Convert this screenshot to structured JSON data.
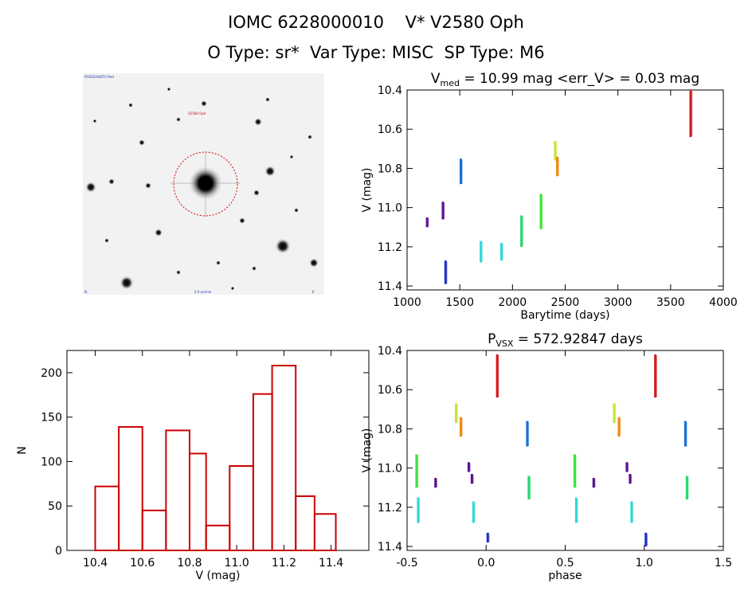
{
  "header": {
    "title_line1": "IOMC 6228000010    V* V2580 Oph",
    "title_line2": "O Type: sr*  Var Type: MISC  SP Type: M6"
  },
  "finder_chart": {
    "labels": {
      "top_left": "POSS2/UKSTU Red",
      "target": "V2580 Oph",
      "bottom_center": "2.0 arcmin",
      "bottom_left": "N",
      "bottom_right": "E"
    }
  },
  "chart_data": [
    {
      "type": "scatter",
      "title_prefix": "V",
      "title_subscript": "med",
      "title_suffix": " = 10.99 mag <err_V> = 0.03 mag",
      "xlabel": "Barytime (days)",
      "ylabel": "V (mag)",
      "xlim": [
        1000,
        4000
      ],
      "ylim": [
        11.42,
        10.4
      ],
      "y_inverted": true,
      "xticks": [
        1000,
        1500,
        2000,
        2500,
        3000,
        3500,
        4000
      ],
      "yticks": [
        10.4,
        10.6,
        10.8,
        11.0,
        11.2,
        11.4
      ],
      "groups": [
        {
          "x": 1190,
          "y_top": 11.05,
          "y_bottom": 11.1,
          "color": "#5b1190"
        },
        {
          "x": 1340,
          "y_top": 10.97,
          "y_bottom": 11.06,
          "color": "#5b1190"
        },
        {
          "x": 1365,
          "y_top": 11.27,
          "y_bottom": 11.39,
          "color": "#2230c8"
        },
        {
          "x": 1510,
          "y_top": 10.75,
          "y_bottom": 10.88,
          "color": "#1a6ed8"
        },
        {
          "x": 1700,
          "y_top": 11.17,
          "y_bottom": 11.28,
          "color": "#30d8d8"
        },
        {
          "x": 1895,
          "y_top": 11.18,
          "y_bottom": 11.27,
          "color": "#30d8d8"
        },
        {
          "x": 2085,
          "y_top": 11.04,
          "y_bottom": 11.2,
          "color": "#24d870"
        },
        {
          "x": 2270,
          "y_top": 10.93,
          "y_bottom": 11.11,
          "color": "#3ae23a"
        },
        {
          "x": 2405,
          "y_top": 10.66,
          "y_bottom": 10.76,
          "color": "#c0e830"
        },
        {
          "x": 2425,
          "y_top": 10.74,
          "y_bottom": 10.84,
          "color": "#f08a10"
        },
        {
          "x": 3690,
          "y_top": 10.4,
          "y_bottom": 10.64,
          "color": "#d41a1a"
        }
      ]
    },
    {
      "type": "bar",
      "title": "",
      "xlabel": "V (mag)",
      "ylabel": "N",
      "xlim": [
        10.28,
        11.56
      ],
      "ylim": [
        0,
        225
      ],
      "xticks": [
        10.4,
        10.6,
        10.8,
        11.0,
        11.2,
        11.4
      ],
      "yticks": [
        0,
        50,
        100,
        150,
        200
      ],
      "bin_edges": [
        10.4,
        10.5,
        10.6,
        10.7,
        10.8,
        10.87,
        10.97,
        11.07,
        11.15,
        11.25,
        11.33,
        11.42
      ],
      "values": [
        72,
        139,
        45,
        135,
        109,
        28,
        95,
        176,
        208,
        61,
        41
      ],
      "color": "#cc0000"
    },
    {
      "type": "scatter",
      "title_prefix": "P",
      "title_subscript": "VSX",
      "title_suffix": " = 572.92847 days",
      "xlabel": "phase",
      "ylabel": "V (mag)",
      "xlim": [
        -0.5,
        1.5
      ],
      "ylim": [
        11.42,
        10.4
      ],
      "y_inverted": true,
      "xticks": [
        -0.5,
        0.0,
        0.5,
        1.0,
        1.5
      ],
      "yticks": [
        10.4,
        10.6,
        10.8,
        11.0,
        11.2,
        11.4
      ],
      "groups": [
        {
          "x": -0.44,
          "y_top": 10.93,
          "y_bottom": 11.1,
          "color": "#3ae23a"
        },
        {
          "x": -0.43,
          "y_top": 11.15,
          "y_bottom": 11.28,
          "color": "#30d8d8"
        },
        {
          "x": -0.32,
          "y_top": 11.05,
          "y_bottom": 11.1,
          "color": "#5b1190"
        },
        {
          "x": -0.19,
          "y_top": 10.67,
          "y_bottom": 10.77,
          "color": "#c0e830"
        },
        {
          "x": -0.16,
          "y_top": 10.74,
          "y_bottom": 10.84,
          "color": "#f08a10"
        },
        {
          "x": -0.11,
          "y_top": 10.97,
          "y_bottom": 11.02,
          "color": "#5b1190"
        },
        {
          "x": -0.09,
          "y_top": 11.03,
          "y_bottom": 11.08,
          "color": "#5b1190"
        },
        {
          "x": -0.08,
          "y_top": 11.17,
          "y_bottom": 11.28,
          "color": "#30d8d8"
        },
        {
          "x": 0.01,
          "y_top": 11.33,
          "y_bottom": 11.38,
          "color": "#2230c8"
        },
        {
          "x": 0.07,
          "y_top": 10.42,
          "y_bottom": 10.64,
          "color": "#d41a1a"
        },
        {
          "x": 0.26,
          "y_top": 10.76,
          "y_bottom": 10.89,
          "color": "#1a6ed8"
        },
        {
          "x": 0.27,
          "y_top": 11.04,
          "y_bottom": 11.16,
          "color": "#24d870"
        },
        {
          "x": 0.56,
          "y_top": 10.93,
          "y_bottom": 11.1,
          "color": "#3ae23a"
        },
        {
          "x": 0.57,
          "y_top": 11.15,
          "y_bottom": 11.28,
          "color": "#30d8d8"
        },
        {
          "x": 0.68,
          "y_top": 11.05,
          "y_bottom": 11.1,
          "color": "#5b1190"
        },
        {
          "x": 0.81,
          "y_top": 10.67,
          "y_bottom": 10.77,
          "color": "#c0e830"
        },
        {
          "x": 0.84,
          "y_top": 10.74,
          "y_bottom": 10.84,
          "color": "#f08a10"
        },
        {
          "x": 0.89,
          "y_top": 10.97,
          "y_bottom": 11.02,
          "color": "#5b1190"
        },
        {
          "x": 0.91,
          "y_top": 11.03,
          "y_bottom": 11.08,
          "color": "#5b1190"
        },
        {
          "x": 0.92,
          "y_top": 11.17,
          "y_bottom": 11.28,
          "color": "#30d8d8"
        },
        {
          "x": 1.01,
          "y_top": 11.33,
          "y_bottom": 11.4,
          "color": "#2230c8"
        },
        {
          "x": 1.07,
          "y_top": 10.42,
          "y_bottom": 10.64,
          "color": "#d41a1a"
        },
        {
          "x": 1.26,
          "y_top": 10.76,
          "y_bottom": 10.89,
          "color": "#1a6ed8"
        },
        {
          "x": 1.27,
          "y_top": 11.04,
          "y_bottom": 11.16,
          "color": "#24d870"
        }
      ]
    }
  ]
}
